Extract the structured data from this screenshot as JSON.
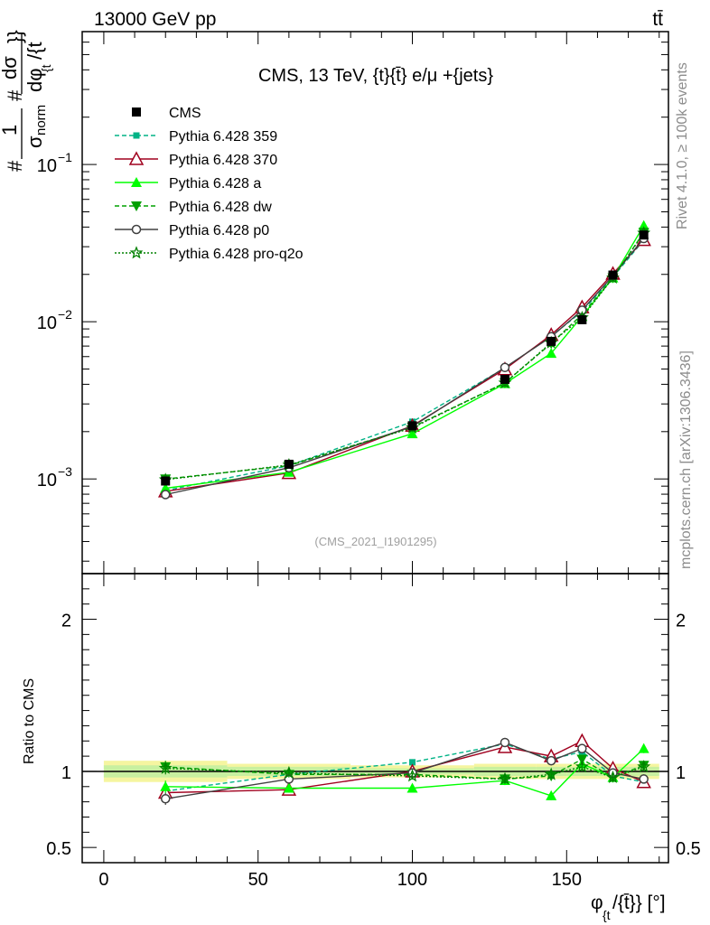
{
  "header": {
    "left": "13000 GeV pp",
    "right": "tt̄"
  },
  "side_labels": {
    "rivet": "Rivet 4.1.0, ≥ 100k events",
    "mcplots": "mcplots.cern.ch [arXiv:1306.3436]"
  },
  "chart_data": {
    "type": "line",
    "title": "CMS, 13 TeV, {t}{t̄} e/μ +{jets}",
    "watermark": "(CMS_2021_I1901295)",
    "ylabel": "#1/σ_norm #dσ/dφ_{tt̄}",
    "ylabel_parts": {
      "n1": "#",
      "one": "1",
      "sigma": "σ",
      "norm": "norm",
      "n2": "#",
      "dsig": "dσ",
      "dphi": "dφ",
      "sub": "{t",
      "tail": "/{t",
      "close": "}}"
    },
    "xlabel": "φ_{t}/{t̄}} [°]",
    "xlabel_parts": {
      "phi": "φ",
      "sub": "{t",
      "rest": "/{t̄}} [°]"
    },
    "ratio_ylabel": "Ratio to CMS",
    "xlim": [
      -7,
      183
    ],
    "ylim_main": [
      0.00025,
      0.7
    ],
    "ylim_ratio": [
      0.4,
      2.3
    ],
    "y_scale_main": "log",
    "x_ticks": [
      "0",
      "50",
      "100",
      "150"
    ],
    "x_tick_values": [
      0,
      50,
      100,
      150
    ],
    "y_ticks_main": [
      {
        "value": 0.1,
        "mant": "10",
        "exp": "−1"
      },
      {
        "value": 0.01,
        "mant": "10",
        "exp": "−2"
      },
      {
        "value": 0.001,
        "mant": "10",
        "exp": "−3"
      }
    ],
    "y_ticks_ratio": [
      "0.5",
      "1",
      "2"
    ],
    "y_tick_values_ratio": [
      0.5,
      1,
      2
    ],
    "x": [
      20,
      60,
      100,
      130,
      145,
      155,
      165,
      175
    ],
    "data": {
      "name": "CMS",
      "values": [
        0.00097,
        0.00124,
        0.00218,
        0.0043,
        0.0075,
        0.0103,
        0.0198,
        0.0356
      ],
      "rel_err": [
        0.05,
        0.04,
        0.03,
        0.03,
        0.03,
        0.03,
        0.03,
        0.03
      ]
    },
    "band": [
      {
        "x0": 0,
        "x1": 40,
        "inner": 0.04,
        "outer": 0.07
      },
      {
        "x0": 40,
        "x1": 80,
        "inner": 0.03,
        "outer": 0.05
      },
      {
        "x0": 80,
        "x1": 120,
        "inner": 0.02,
        "outer": 0.04
      },
      {
        "x0": 120,
        "x1": 140,
        "inner": 0.03,
        "outer": 0.05
      },
      {
        "x0": 140,
        "x1": 150,
        "inner": 0.03,
        "outer": 0.05
      },
      {
        "x0": 150,
        "x1": 160,
        "inner": 0.03,
        "outer": 0.05
      },
      {
        "x0": 160,
        "x1": 170,
        "inner": 0.03,
        "outer": 0.05
      },
      {
        "x0": 170,
        "x1": 180,
        "inner": 0.03,
        "outer": 0.05
      }
    ],
    "series": [
      {
        "name": "Pythia 6.428 359",
        "color": "#00b386",
        "dash": "5,3",
        "marker": "square-small",
        "ratio": [
          0.87,
          0.98,
          1.06,
          1.18,
          1.08,
          1.13,
          0.97,
          0.93
        ],
        "ratio_err": [
          0.04,
          0.03,
          0.02,
          0.03,
          0.03,
          0.03,
          0.03,
          0.03
        ]
      },
      {
        "name": "Pythia 6.428 370",
        "color": "#a0001e",
        "dash": "",
        "marker": "triangle-open",
        "ratio": [
          0.86,
          0.88,
          1.0,
          1.16,
          1.1,
          1.2,
          1.02,
          0.93
        ],
        "ratio_err": [
          0.04,
          0.03,
          0.02,
          0.03,
          0.03,
          0.03,
          0.03,
          0.03
        ]
      },
      {
        "name": "Pythia 6.428 a",
        "color": "#00ff00",
        "dash": "",
        "marker": "triangle-filled",
        "ratio": [
          0.9,
          0.89,
          0.89,
          0.94,
          0.84,
          1.05,
          0.96,
          1.15
        ],
        "ratio_err": [
          0.04,
          0.03,
          0.02,
          0.03,
          0.03,
          0.03,
          0.03,
          0.03
        ]
      },
      {
        "name": "Pythia 6.428 dw",
        "color": "#00a000",
        "dash": "5,3",
        "marker": "triangle-down",
        "ratio": [
          1.03,
          0.98,
          0.98,
          0.95,
          0.97,
          1.08,
          0.96,
          1.04
        ],
        "ratio_err": [
          0.04,
          0.03,
          0.02,
          0.03,
          0.03,
          0.03,
          0.03,
          0.03
        ]
      },
      {
        "name": "Pythia 6.428 p0",
        "color": "#404040",
        "dash": "",
        "marker": "circle-open",
        "ratio": [
          0.82,
          0.95,
          0.99,
          1.19,
          1.07,
          1.15,
          0.99,
          0.95
        ],
        "ratio_err": [
          0.04,
          0.03,
          0.02,
          0.03,
          0.03,
          0.03,
          0.03,
          0.03
        ]
      },
      {
        "name": "Pythia 6.428 pro-q2o",
        "color": "#008000",
        "dash": "2,2",
        "marker": "star-open",
        "ratio": [
          1.02,
          0.99,
          0.97,
          0.95,
          0.98,
          1.03,
          0.96,
          1.03
        ],
        "ratio_err": [
          0.04,
          0.03,
          0.02,
          0.03,
          0.03,
          0.03,
          0.03,
          0.03
        ]
      }
    ]
  }
}
